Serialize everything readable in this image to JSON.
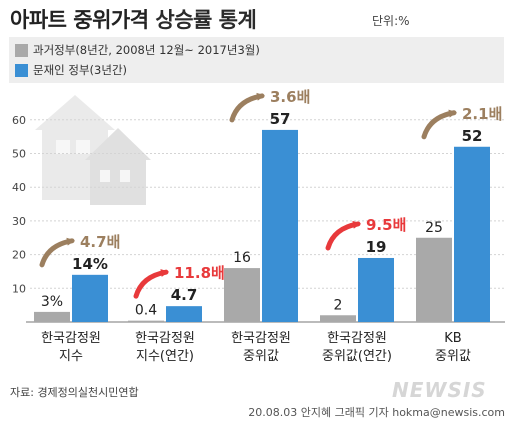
{
  "header": {
    "title_main": "아파트 중위가격 ",
    "title_highlight": "상승률 통계",
    "unit": "단위:%"
  },
  "legend": [
    {
      "label": "과거정부(8년간, 2008년 12월~ 2017년3월)",
      "color": "#a9a9a9"
    },
    {
      "label": "문재인 정부(3년간)",
      "color": "#3a8fd4"
    }
  ],
  "chart_data": {
    "type": "bar",
    "categories": [
      [
        "한국감정원",
        "지수"
      ],
      [
        "한국감정원",
        "지수(연간)"
      ],
      [
        "한국감정원",
        "중위값"
      ],
      [
        "한국감정원",
        "중위값(연간)"
      ],
      [
        "KB",
        "중위값"
      ]
    ],
    "series": [
      {
        "name": "과거정부(8년간, 2008년 12월~ 2017년3월)",
        "values": [
          3,
          0.4,
          16,
          2,
          25
        ],
        "labels": [
          "3%",
          "0.4",
          "16",
          "2",
          "25"
        ],
        "color": "#a9a9a9"
      },
      {
        "name": "문재인 정부(3년간)",
        "values": [
          14,
          4.7,
          57,
          19,
          52
        ],
        "labels": [
          "14%",
          "4.7",
          "57",
          "19",
          "52"
        ],
        "color": "#3a8fd4"
      }
    ],
    "multipliers": [
      {
        "label": "4.7배",
        "color": "#9c7f5f"
      },
      {
        "label": "11.8배",
        "color": "#e8393b"
      },
      {
        "label": "3.6배",
        "color": "#9c7f5f"
      },
      {
        "label": "9.5배",
        "color": "#e8393b"
      },
      {
        "label": "2.1배",
        "color": "#9c7f5f"
      }
    ],
    "yticks": [
      10,
      20,
      30,
      40,
      50,
      60
    ],
    "ylim": [
      0,
      65
    ],
    "xlabel": "",
    "ylabel": ""
  },
  "footer": {
    "source": "자료: 경제정의실천시민연합",
    "credit": "20.08.03 안지혜 그래픽 기자 hokma@newsis.com",
    "watermark": "NEWSIS"
  }
}
